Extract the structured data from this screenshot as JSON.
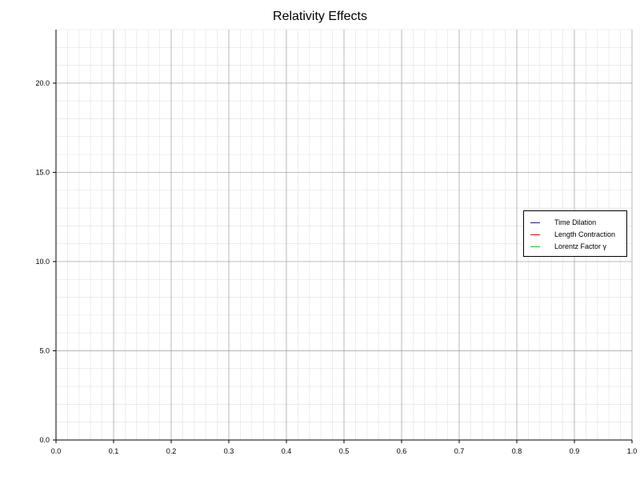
{
  "chart_data": {
    "type": "line",
    "title": "Relativity Effects",
    "xlabel": "",
    "ylabel": "",
    "xlim": [
      0.0,
      1.0
    ],
    "ylim": [
      0.0,
      23.0
    ],
    "x_ticks": [
      "0.0",
      "0.1",
      "0.2",
      "0.3",
      "0.4",
      "0.5",
      "0.6",
      "0.7",
      "0.8",
      "0.9",
      "1.0"
    ],
    "y_ticks": [
      "0.0",
      "5.0",
      "10.0",
      "15.0",
      "20.0"
    ],
    "grid": true,
    "legend_position": "right",
    "series": [
      {
        "name": "Time Dilation",
        "color": "#1f1f7a",
        "values": []
      },
      {
        "name": "Length Contraction",
        "color": "#e01010",
        "values": []
      },
      {
        "name": "Lorentz Factor γ",
        "color": "#20c020",
        "values": []
      }
    ]
  }
}
